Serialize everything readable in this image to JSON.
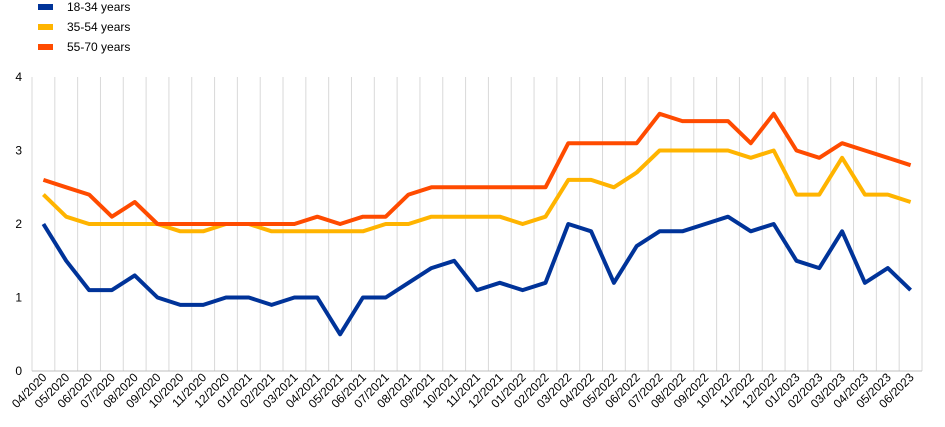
{
  "chart_data": {
    "type": "line",
    "title": "",
    "xlabel": "",
    "ylabel": "",
    "ylim": [
      0,
      4
    ],
    "y_ticks": [
      "0",
      "1",
      "2",
      "3",
      "4"
    ],
    "grid": "vertical",
    "legend_position": "top-left",
    "categories": [
      "04/2020",
      "05/2020",
      "06/2020",
      "07/2020",
      "08/2020",
      "09/2020",
      "10/2020",
      "11/2020",
      "12/2020",
      "01/2021",
      "02/2021",
      "03/2021",
      "04/2021",
      "05/2021",
      "06/2021",
      "07/2021",
      "08/2021",
      "09/2021",
      "10/2021",
      "11/2021",
      "12/2021",
      "01/2022",
      "02/2022",
      "03/2022",
      "04/2022",
      "05/2022",
      "06/2022",
      "07/2022",
      "08/2022",
      "09/2022",
      "10/2022",
      "11/2022",
      "12/2022",
      "01/2023",
      "02/2023",
      "03/2023",
      "04/2023",
      "05/2023",
      "06/2023"
    ],
    "series": [
      {
        "name": "18-34 years",
        "color": "#003399",
        "values": [
          2.0,
          1.5,
          1.1,
          1.1,
          1.3,
          1.0,
          0.9,
          0.9,
          1.0,
          1.0,
          0.9,
          1.0,
          1.0,
          0.5,
          1.0,
          1.0,
          1.2,
          1.4,
          1.5,
          1.1,
          1.2,
          1.1,
          1.2,
          2.0,
          1.9,
          1.2,
          1.7,
          1.9,
          1.9,
          2.0,
          2.1,
          1.9,
          2.0,
          1.5,
          1.4,
          1.9,
          1.2,
          1.4,
          1.1
        ]
      },
      {
        "name": "35-54 years",
        "color": "#FFB400",
        "values": [
          2.4,
          2.1,
          2.0,
          2.0,
          2.0,
          2.0,
          1.9,
          1.9,
          2.0,
          2.0,
          1.9,
          1.9,
          1.9,
          1.9,
          1.9,
          2.0,
          2.0,
          2.1,
          2.1,
          2.1,
          2.1,
          2.0,
          2.1,
          2.6,
          2.6,
          2.5,
          2.7,
          3.0,
          3.0,
          3.0,
          3.0,
          2.9,
          3.0,
          2.4,
          2.4,
          2.9,
          2.4,
          2.4,
          2.3
        ]
      },
      {
        "name": "55-70 years",
        "color": "#FF4B00",
        "values": [
          2.6,
          2.5,
          2.4,
          2.1,
          2.3,
          2.0,
          2.0,
          2.0,
          2.0,
          2.0,
          2.0,
          2.0,
          2.1,
          2.0,
          2.1,
          2.1,
          2.4,
          2.5,
          2.5,
          2.5,
          2.5,
          2.5,
          2.5,
          3.1,
          3.1,
          3.1,
          3.1,
          3.5,
          3.4,
          3.4,
          3.4,
          3.1,
          3.5,
          3.0,
          2.9,
          3.1,
          3.0,
          2.9,
          2.8
        ]
      }
    ]
  }
}
